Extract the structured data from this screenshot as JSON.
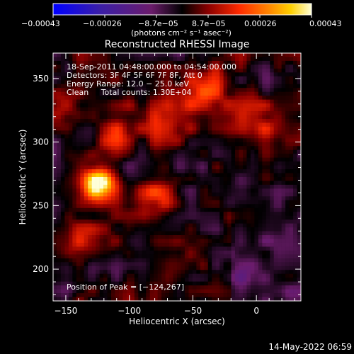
{
  "chart_data": {
    "type": "heatmap",
    "title": "Reconstructed RHESSI Image",
    "xlabel": "Heliocentric X (arcsec)",
    "ylabel": "Heliocentric Y (arcsec)",
    "xlim": [
      -160,
      35
    ],
    "ylim": [
      175,
      370
    ],
    "x_ticks": [
      {
        "value": -150,
        "label": "−150"
      },
      {
        "value": -100,
        "label": "−100"
      },
      {
        "value": -50,
        "label": "−50"
      },
      {
        "value": 0,
        "label": "0"
      }
    ],
    "y_ticks": [
      {
        "value": 200,
        "label": "200"
      },
      {
        "value": 250,
        "label": "250"
      },
      {
        "value": 300,
        "label": "300"
      },
      {
        "value": 350,
        "label": "350"
      }
    ],
    "colorbar": {
      "range": [
        -0.00043,
        0.00043
      ],
      "tick_labels": [
        "−0.00043",
        "−0.00026",
        "−8.7e−05",
        "8.7e−05",
        "0.00026",
        "0.00043"
      ],
      "units_label": "(photons cm⁻² s⁻¹ asec⁻²)"
    },
    "annotations": {
      "time_range": "18‑Sep‑2011 04:48:00.000 to 04:54:00.000",
      "detectors": "Detectors: 3F 4F 5F 6F 7F 8F, Att 0",
      "energy_range": "Energy Range: 12.0 − 25.0 keV",
      "clean_counts": "Clean     Total counts: 1.30E+04",
      "peak_position": "Position of Peak = [−124,267]"
    },
    "peak": {
      "x": -124,
      "y": 267
    },
    "sources": [
      {
        "x": -124,
        "y": 267,
        "amp": 1.0,
        "s": 9
      },
      {
        "x": -110,
        "y": 305,
        "amp": 0.45,
        "s": 12
      },
      {
        "x": -70,
        "y": 320,
        "amp": 0.4,
        "s": 14
      },
      {
        "x": -40,
        "y": 340,
        "amp": 0.35,
        "s": 15
      },
      {
        "x": 5,
        "y": 320,
        "amp": 0.35,
        "s": 14
      },
      {
        "x": -80,
        "y": 255,
        "amp": 0.4,
        "s": 13
      },
      {
        "x": -150,
        "y": 330,
        "amp": 0.35,
        "s": 14
      },
      {
        "x": -140,
        "y": 220,
        "amp": 0.35,
        "s": 12
      },
      {
        "x": -60,
        "y": 200,
        "amp": 0.3,
        "s": 12
      }
    ]
  },
  "timestamp": "14‑May‑2022 06:59",
  "colors": {
    "background": "#000000",
    "foreground": "#ffffff"
  }
}
